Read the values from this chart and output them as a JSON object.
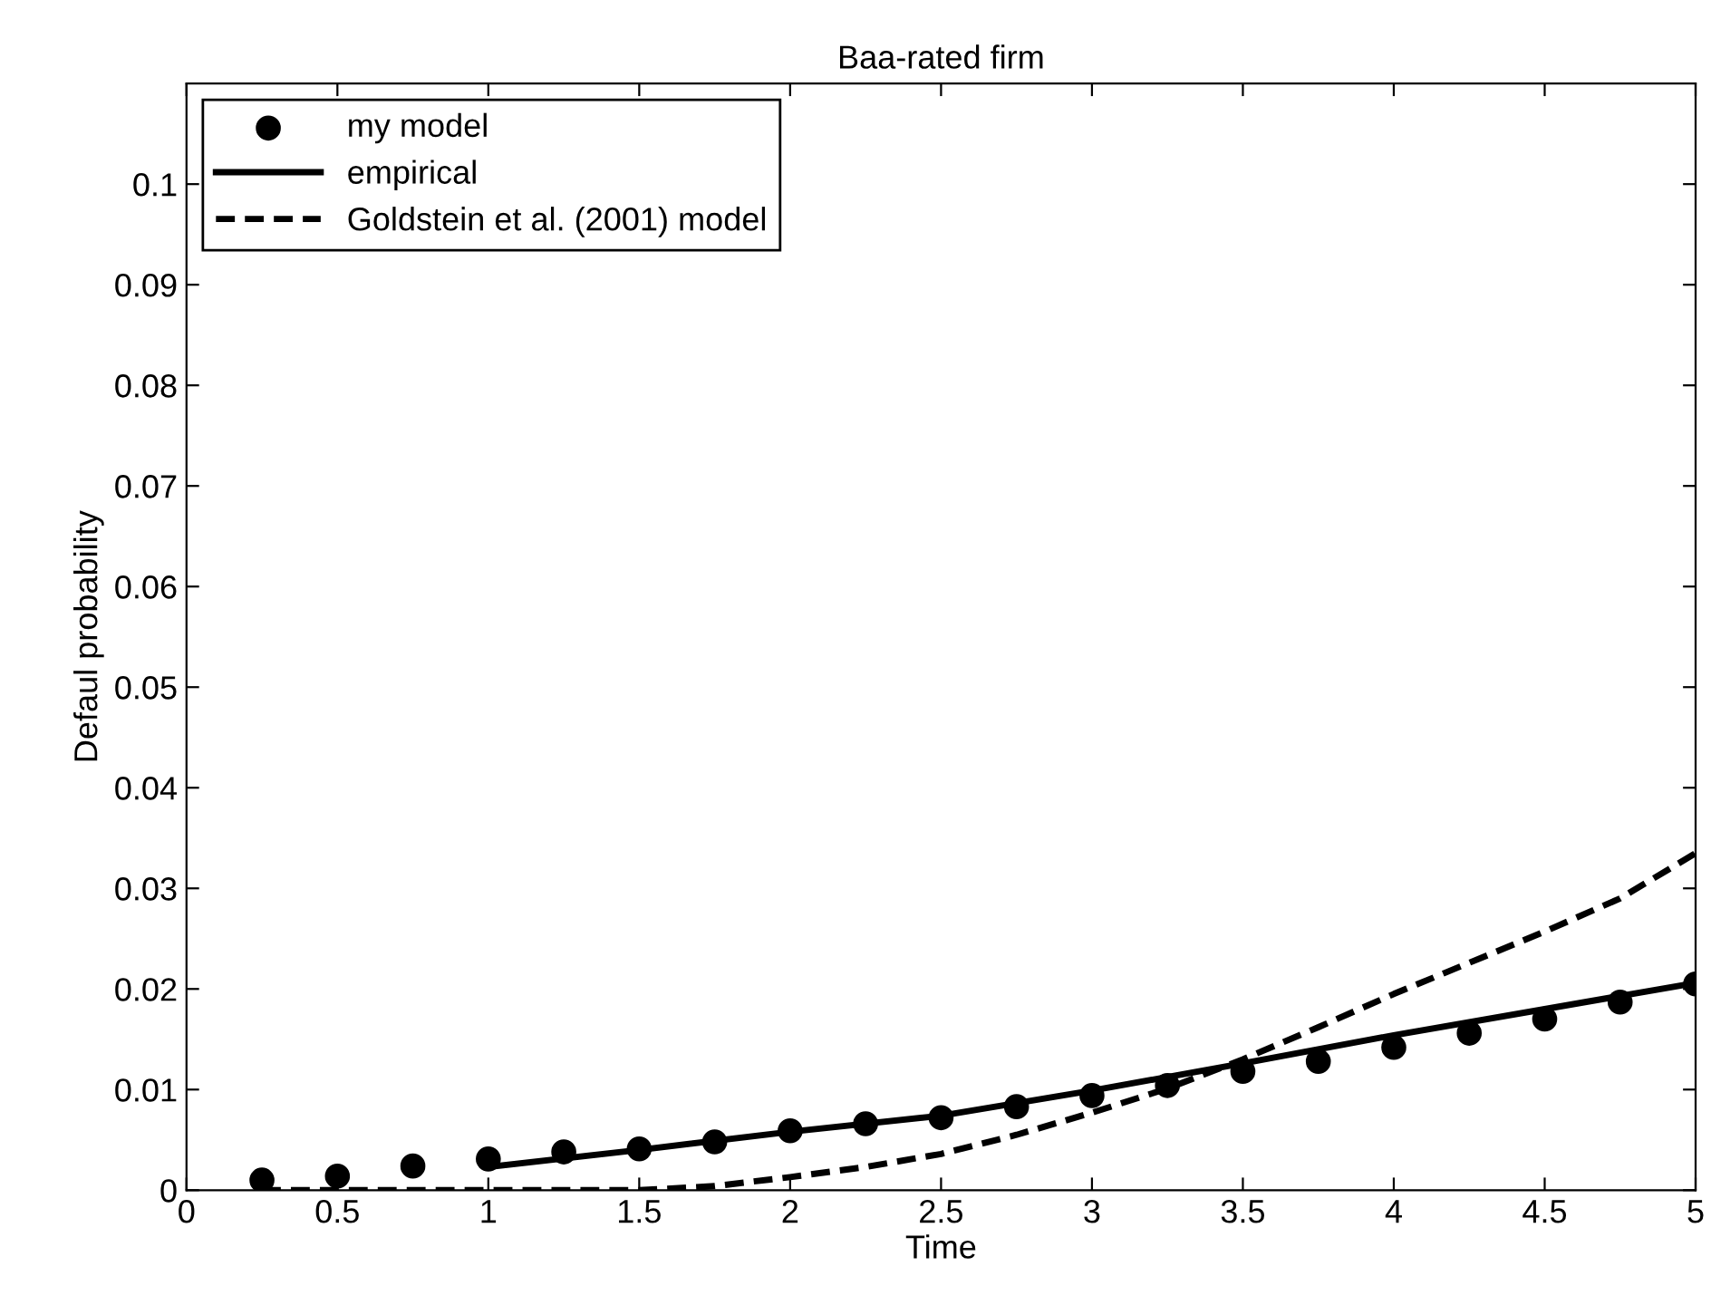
{
  "chart_data": {
    "type": "line",
    "title": "Baa-rated firm",
    "xlabel": "Time",
    "ylabel": "Defaul probability",
    "xlim": [
      0,
      5
    ],
    "ylim": [
      0,
      0.11
    ],
    "xticks": [
      0,
      0.5,
      1,
      1.5,
      2,
      2.5,
      3,
      3.5,
      4,
      4.5,
      5
    ],
    "yticks": [
      0,
      0.01,
      0.02,
      0.03,
      0.04,
      0.05,
      0.06,
      0.07,
      0.08,
      0.09,
      0.1
    ],
    "grid": false,
    "legend": "top left",
    "series": [
      {
        "name": "my model",
        "type": "scatter",
        "marker": "circle",
        "color": "#000000",
        "x": [
          0.25,
          0.5,
          0.75,
          1,
          1.25,
          1.5,
          1.75,
          2,
          2.25,
          2.5,
          2.75,
          3,
          3.25,
          3.5,
          3.75,
          4,
          4.25,
          4.5,
          4.75,
          5
        ],
        "values": [
          0.001,
          0.0014,
          0.0024,
          0.0031,
          0.0038,
          0.0041,
          0.0048,
          0.0059,
          0.0066,
          0.0072,
          0.0083,
          0.0094,
          0.0104,
          0.0118,
          0.0128,
          0.0142,
          0.0156,
          0.017,
          0.0187,
          0.0205
        ]
      },
      {
        "name": "empirical",
        "line_style": "solid",
        "color": "#000000",
        "x": [
          1,
          1.5,
          2,
          2.5,
          3,
          3.5,
          4,
          4.5,
          5
        ],
        "values": [
          0.0023,
          0.004,
          0.0058,
          0.0074,
          0.0099,
          0.0126,
          0.0154,
          0.018,
          0.0206
        ]
      },
      {
        "name": "Goldstein et al. (2001) model",
        "line_style": "dashed",
        "color": "#000000",
        "x": [
          0.25,
          0.5,
          1,
          1.5,
          1.75,
          2,
          2.25,
          2.5,
          2.75,
          3,
          3.25,
          3.5,
          3.75,
          4,
          4.25,
          4.5,
          4.75,
          5
        ],
        "values": [
          0,
          0,
          0,
          0,
          0.0004,
          0.0013,
          0.0023,
          0.0036,
          0.0055,
          0.0077,
          0.0101,
          0.013,
          0.0162,
          0.0195,
          0.0226,
          0.0257,
          0.029,
          0.0335
        ]
      }
    ]
  }
}
